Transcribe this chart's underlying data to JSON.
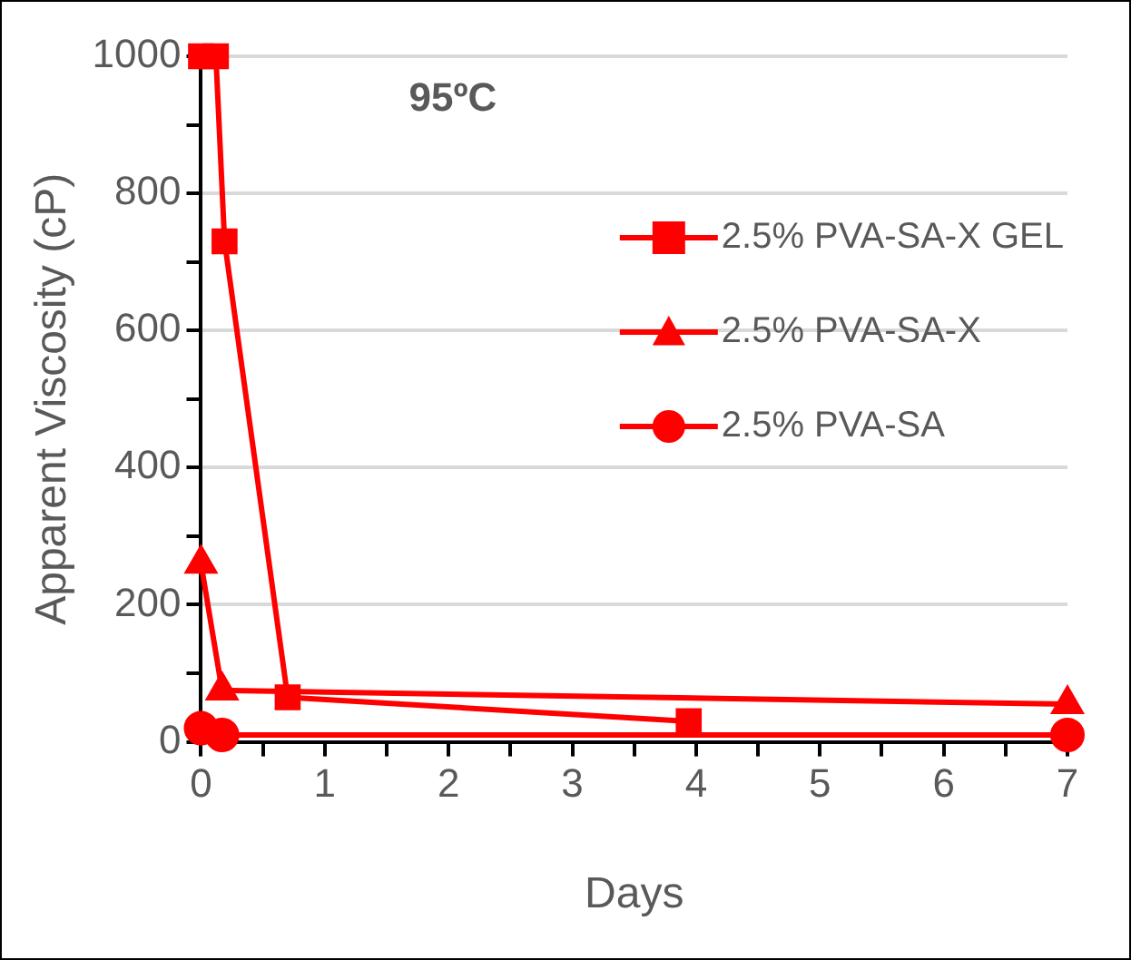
{
  "chart_data": {
    "type": "line",
    "title": "95ºC",
    "xlabel": "Days",
    "ylabel": "Apparent Viscosity (cP)",
    "xlim": [
      0,
      7
    ],
    "xticks": [
      0,
      {
        "value": 0.5,
        "label": null
      },
      1,
      {
        "value": 1.5,
        "label": null
      },
      2,
      {
        "value": 2.5,
        "label": null
      },
      3,
      {
        "value": 3.5,
        "label": null
      },
      4,
      {
        "value": 4.5,
        "label": null
      },
      5,
      {
        "value": 5.5,
        "label": null
      },
      6,
      {
        "value": 6.5,
        "label": null
      },
      7
    ],
    "ylim": [
      0,
      1000
    ],
    "yticks": [
      0,
      {
        "value": 100,
        "label": null
      },
      200,
      {
        "value": 300,
        "label": null
      },
      400,
      {
        "value": 500,
        "label": null
      },
      600,
      {
        "value": 700,
        "label": null
      },
      800,
      {
        "value": 900,
        "label": null
      },
      1000
    ],
    "grid": "y",
    "legend": "top right",
    "line_style": "solid",
    "series": [
      {
        "name": "2.5% PVA-SA-X GEL",
        "color": "#ff0000",
        "marker": "square",
        "x": [
          0,
          0.12,
          0.19,
          0.7,
          3.94
        ],
        "values": [
          1000,
          1000,
          730,
          65,
          30
        ]
      },
      {
        "name": "2.5% PVA-SA-X",
        "color": "#ff0000",
        "marker": "triangle",
        "x": [
          0,
          0.17,
          7
        ],
        "values": [
          260,
          75,
          55
        ]
      },
      {
        "name": "2.5% PVA-SA",
        "color": "#ff0000",
        "marker": "circle",
        "x": [
          0,
          0.17,
          7
        ],
        "values": [
          20,
          10,
          10
        ]
      }
    ]
  }
}
